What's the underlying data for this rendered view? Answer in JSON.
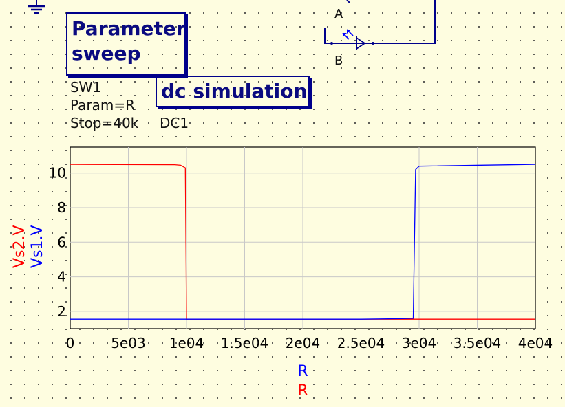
{
  "schematic": {
    "sweep": {
      "title_line1": "Parameter",
      "title_line2": "sweep",
      "props": [
        "SW1",
        "Param=R",
        "Stop=40k"
      ]
    },
    "dc": {
      "title": "dc simulation",
      "props": [
        "DC1"
      ]
    },
    "nodes": [
      "A",
      "B"
    ],
    "colors": {
      "component_box": "#00008b",
      "wire": "#00008b",
      "background": "#fefde0"
    }
  },
  "chart_data": {
    "type": "line",
    "xlabel_top": "R",
    "xlabel_bottom": "R",
    "ylabel_outer": "Vs2.V",
    "ylabel_inner": "Vs1.V",
    "xlim": [
      0,
      40000
    ],
    "ylim": [
      1.0,
      11.5
    ],
    "x_ticks": [
      {
        "value": 0,
        "label": "0"
      },
      {
        "value": 5000,
        "label": "5e03"
      },
      {
        "value": 10000,
        "label": "1e04"
      },
      {
        "value": 15000,
        "label": "1.5e04"
      },
      {
        "value": 20000,
        "label": "2e04"
      },
      {
        "value": 25000,
        "label": "2.5e04"
      },
      {
        "value": 30000,
        "label": "3e04"
      },
      {
        "value": 35000,
        "label": "3.5e04"
      },
      {
        "value": 40000,
        "label": "4e04"
      }
    ],
    "y_ticks": [
      {
        "value": 2,
        "label": "2"
      },
      {
        "value": 4,
        "label": "4"
      },
      {
        "value": 6,
        "label": "6"
      },
      {
        "value": 8,
        "label": "8"
      },
      {
        "value": 10,
        "label": "10"
      }
    ],
    "grid": true,
    "series": [
      {
        "name": "Vs2.V",
        "color": "#ff0000",
        "x": [
          0,
          9000,
          9500,
          9900,
          10000,
          40000
        ],
        "y": [
          10.5,
          10.48,
          10.45,
          10.3,
          1.55,
          1.55
        ]
      },
      {
        "name": "Vs1.V",
        "color": "#0000ff",
        "x": [
          0,
          25000,
          28500,
          29500,
          29700,
          30000,
          40000
        ],
        "y": [
          1.55,
          1.55,
          1.58,
          1.6,
          10.2,
          10.4,
          10.5
        ]
      }
    ]
  }
}
